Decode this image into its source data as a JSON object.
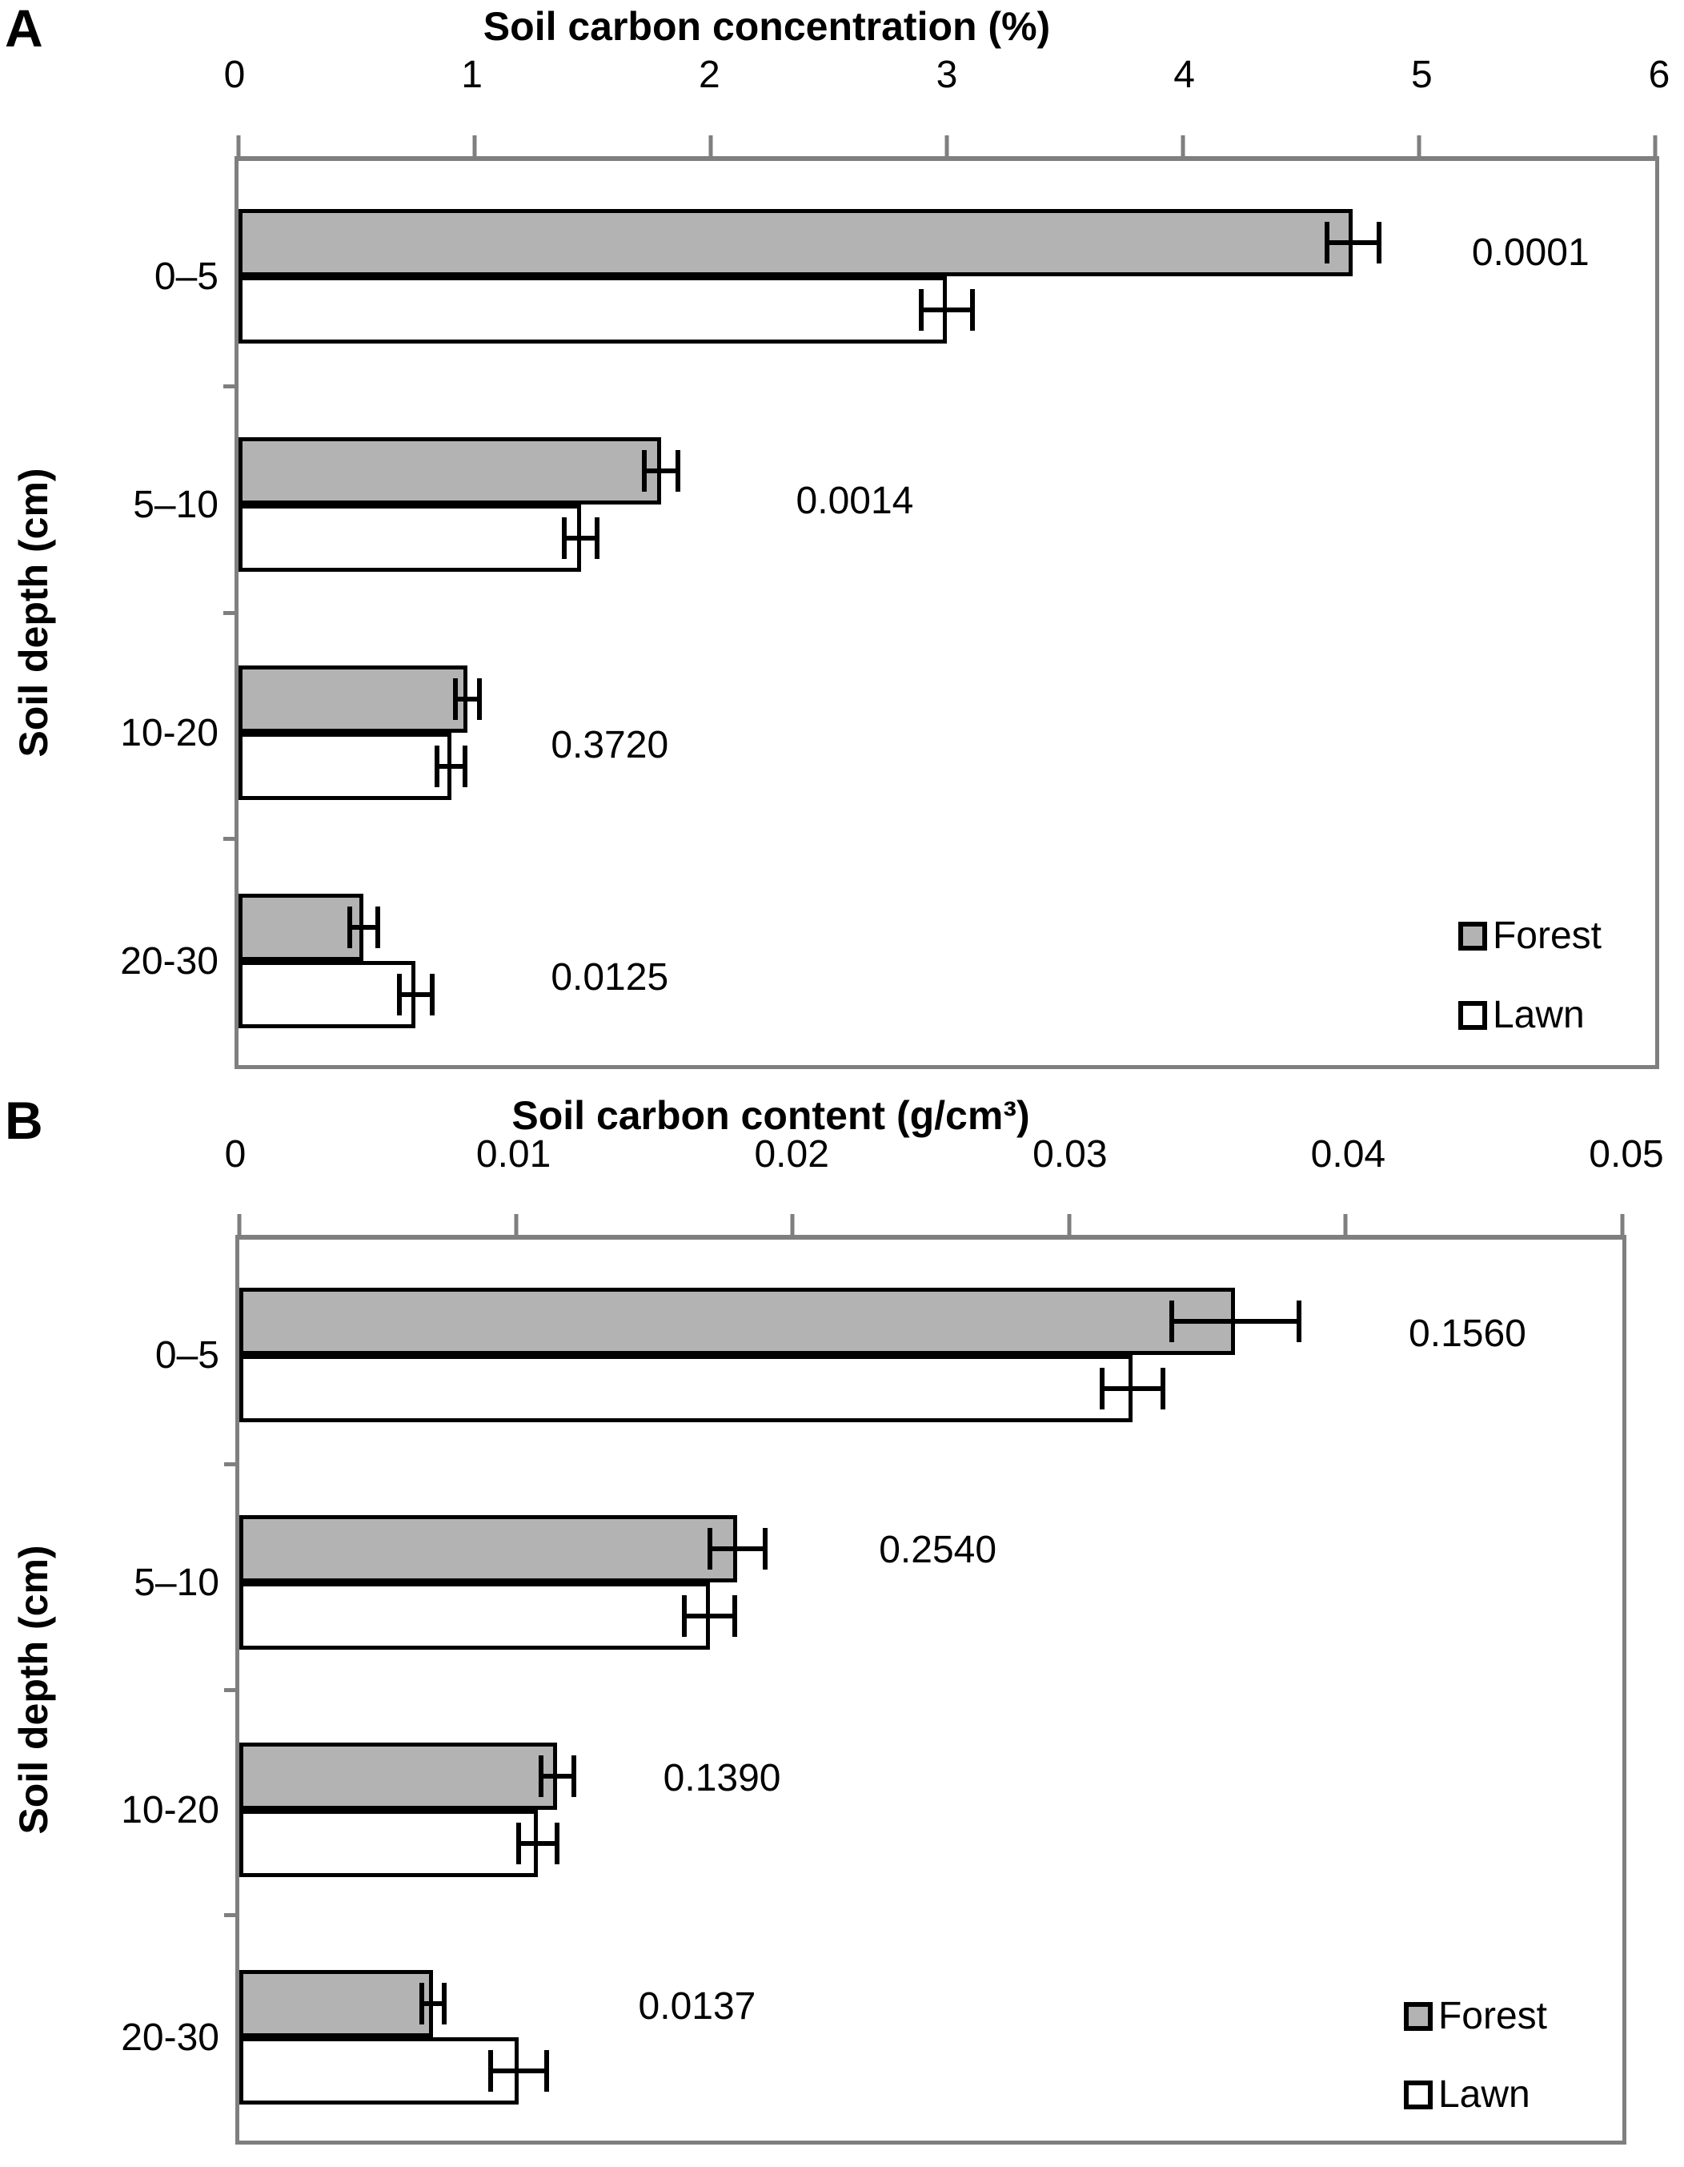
{
  "figure": {
    "colors": {
      "forest_fill": "#b3b3b3",
      "lawn_fill": "#ffffff",
      "bar_border": "#000000",
      "axis_color": "#7f7f7f",
      "text_color": "#000000"
    }
  },
  "panels": [
    {
      "letter": "A",
      "title": "Soil carbon concentration (%)",
      "ylabel": "Soil depth (cm)"
    },
    {
      "letter": "B",
      "title": "Soil carbon content (g/cm³)",
      "ylabel": "Soil depth (cm)"
    }
  ],
  "chart_data": [
    {
      "panel": "A",
      "type": "bar",
      "orientation": "horizontal",
      "title": "Soil carbon concentration (%)",
      "xlabel": "Soil carbon concentration (%)",
      "ylabel": "Soil depth (cm)",
      "categories": [
        "0–5",
        "5–10",
        "10-20",
        "20-30"
      ],
      "xlim": [
        0,
        6
      ],
      "x_ticks": [
        0,
        1,
        2,
        3,
        4,
        5,
        6
      ],
      "x_tick_labels": [
        "0",
        "1",
        "2",
        "3",
        "4",
        "5",
        "6"
      ],
      "grid": false,
      "legend_position": "inside-bottom-right",
      "series": [
        {
          "name": "Forest",
          "color": "#b3b3b3",
          "values": [
            4.72,
            1.79,
            0.97,
            0.53
          ],
          "errors": [
            0.11,
            0.07,
            0.05,
            0.06
          ]
        },
        {
          "name": "Lawn",
          "color": "#ffffff",
          "values": [
            3.0,
            1.45,
            0.9,
            0.75
          ],
          "errors": [
            0.11,
            0.07,
            0.06,
            0.07
          ]
        }
      ],
      "p_values": [
        "0.0001",
        "0.0014",
        "0.3720",
        "0.0125"
      ],
      "legend": [
        "Forest",
        "Lawn"
      ]
    },
    {
      "panel": "B",
      "type": "bar",
      "orientation": "horizontal",
      "title": "Soil carbon content (g/cm³)",
      "xlabel": "Soil carbon content (g/cm³)",
      "ylabel": "Soil depth (cm)",
      "categories": [
        "0–5",
        "5–10",
        "10-20",
        "20-30"
      ],
      "xlim": [
        0,
        0.05
      ],
      "x_ticks": [
        0,
        0.01,
        0.02,
        0.03,
        0.04,
        0.05
      ],
      "x_tick_labels": [
        "0",
        "0.01",
        "0.02",
        "0.03",
        "0.04",
        "0.05"
      ],
      "grid": false,
      "legend_position": "inside-bottom-right",
      "series": [
        {
          "name": "Forest",
          "color": "#b3b3b3",
          "values": [
            0.036,
            0.018,
            0.0115,
            0.007
          ],
          "errors": [
            0.0023,
            0.001,
            0.0006,
            0.0004
          ]
        },
        {
          "name": "Lawn",
          "color": "#ffffff",
          "values": [
            0.0323,
            0.017,
            0.0108,
            0.0101
          ],
          "errors": [
            0.0011,
            0.0009,
            0.0007,
            0.001
          ]
        }
      ],
      "p_values": [
        "0.1560",
        "0.2540",
        "0.1390",
        "0.0137"
      ],
      "legend": [
        "Forest",
        "Lawn"
      ]
    }
  ]
}
